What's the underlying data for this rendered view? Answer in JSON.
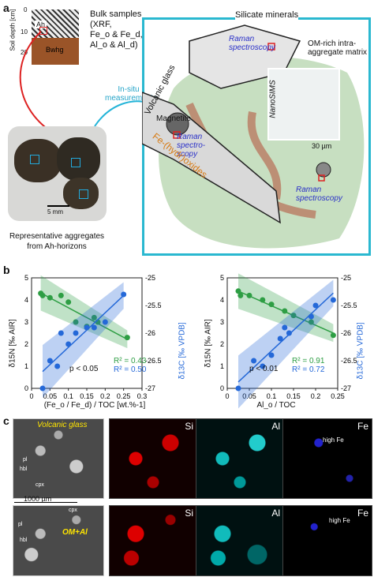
{
  "panel_a": {
    "letter": "a",
    "soil_depth_label": "Soil depth [cm]",
    "depth_ticks": [
      "0",
      "10",
      "20"
    ],
    "horizon_top": "Ah",
    "horizon_bottom": "Bwhg",
    "bulk_samples": [
      "Bulk samples",
      "(XRF,",
      "Fe",
      "& Fe",
      ",",
      "Al",
      "& Al",
      ")"
    ],
    "bulk_line1": "Bulk samples",
    "bulk_line2": "(XRF,",
    "bulk_line3": "Fe_o & Fe_d,",
    "bulk_line4": "Al_o & Al_d)",
    "insitu": "In-situ measurements",
    "scale_5mm": "5 mm",
    "agg_caption_1": "Representative aggregates",
    "agg_caption_2": "from Ah-horizons",
    "silicate": "Silicate minerals",
    "raman1": "Raman spectroscopy",
    "om_rich": "OM-rich intra-aggregate matrix",
    "volcanic_glass": "Volcanic glass",
    "magnetite": "Magnetite",
    "raman2": "Raman spectro-scopy",
    "fe_hydr": "Fe-(hydr)oxides",
    "nanosims": "NanoSIMS",
    "scale_30um": "30 µm",
    "raman3": "Raman spectroscopy"
  },
  "panel_b": {
    "letter": "b",
    "left": {
      "ylabel_left": "δ15N [‰ AIR]",
      "ylabel_right": "δ13C [‰ VPDB]",
      "xlabel": "(Fe_o / Fe_d) / TOC [wt.%-1]",
      "p": "p < 0.05",
      "r2_green": "R² = 0.43",
      "r2_blue": "R² = 0.50",
      "xticks": [
        "0",
        "0.05",
        "0.1",
        "0.15",
        "0.2",
        "0.25",
        "0.3"
      ],
      "yticks_left": [
        "0",
        "1",
        "2",
        "3",
        "4",
        "5"
      ],
      "yticks_right": [
        "-25",
        "-25.5",
        "-26",
        "-26.5",
        "-27"
      ]
    },
    "right": {
      "xlabel": "Al_o / TOC",
      "p": "p < 0.01",
      "r2_green": "R² = 0.91",
      "r2_blue": "R² = 0.72",
      "xticks": [
        "0",
        "0.05",
        "0.1",
        "0.15",
        "0.2",
        "0.25"
      ],
      "yticks_left": [
        "0",
        "1",
        "2",
        "3",
        "4",
        "5"
      ],
      "yticks_right": [
        "-25",
        "-25.5",
        "-26",
        "-26.5",
        "-27"
      ]
    }
  },
  "panel_c": {
    "letter": "c",
    "row1_label": "Volcanic glass",
    "row2_label": "OM+Al",
    "scale": "1000 µm",
    "elements": [
      "Si",
      "Al",
      "Fe"
    ],
    "high_fe": "high Fe",
    "mineral_tags": [
      "pl",
      "hbl",
      "cpx",
      "pl",
      "cpx",
      "hbl",
      "pl"
    ]
  },
  "chart_data": [
    {
      "type": "scatter",
      "xlabel": "(Feo / Fed) / TOC [wt.%-1]",
      "ylabel": "δ15N [‰ AIR]",
      "ylabel_secondary": "δ13C [‰ VPDB]",
      "xlim": [
        0,
        0.3
      ],
      "ylim": [
        0,
        5
      ],
      "ylim_secondary": [
        -27,
        -25
      ],
      "annotations": [
        "p < 0.05",
        "R² = 0.43",
        "R² = 0.50"
      ],
      "series": [
        {
          "color": "#2e9e44",
          "axis": "left",
          "x": [
            0.025,
            0.03,
            0.05,
            0.08,
            0.1,
            0.12,
            0.15,
            0.17,
            0.18,
            0.26
          ],
          "y": [
            4.3,
            4.2,
            4.1,
            4.2,
            3.9,
            3.0,
            2.8,
            3.2,
            3.0,
            2.3
          ]
        },
        {
          "color": "#2468d8",
          "axis": "right",
          "x": [
            0.03,
            0.05,
            0.07,
            0.1,
            0.12,
            0.15,
            0.17,
            0.2,
            0.25,
            0.08
          ],
          "y": [
            -27.0,
            -26.5,
            -26.6,
            -26.2,
            -26.0,
            -25.9,
            -25.9,
            -25.8,
            -25.3,
            -26.0
          ]
        }
      ]
    },
    {
      "type": "scatter",
      "xlabel": "Alo / TOC",
      "ylabel": "δ15N [‰ AIR]",
      "ylabel_secondary": "δ13C [‰ VPDB]",
      "xlim": [
        0,
        0.25
      ],
      "ylim": [
        0,
        5
      ],
      "ylim_secondary": [
        -27,
        -25
      ],
      "annotations": [
        "p < 0.01",
        "R² = 0.91",
        "R² = 0.72"
      ],
      "series": [
        {
          "color": "#2e9e44",
          "axis": "left",
          "x": [
            0.025,
            0.03,
            0.05,
            0.08,
            0.1,
            0.13,
            0.15,
            0.19,
            0.24
          ],
          "y": [
            4.4,
            4.2,
            4.2,
            4.0,
            3.8,
            3.5,
            3.3,
            3.0,
            2.4
          ]
        },
        {
          "color": "#2468d8",
          "axis": "right",
          "x": [
            0.025,
            0.06,
            0.08,
            0.1,
            0.12,
            0.14,
            0.19,
            0.2,
            0.24,
            0.13
          ],
          "y": [
            -27.0,
            -26.5,
            -26.6,
            -26.4,
            -26.1,
            -26.0,
            -25.7,
            -25.5,
            -25.4,
            -25.9
          ]
        }
      ]
    }
  ]
}
